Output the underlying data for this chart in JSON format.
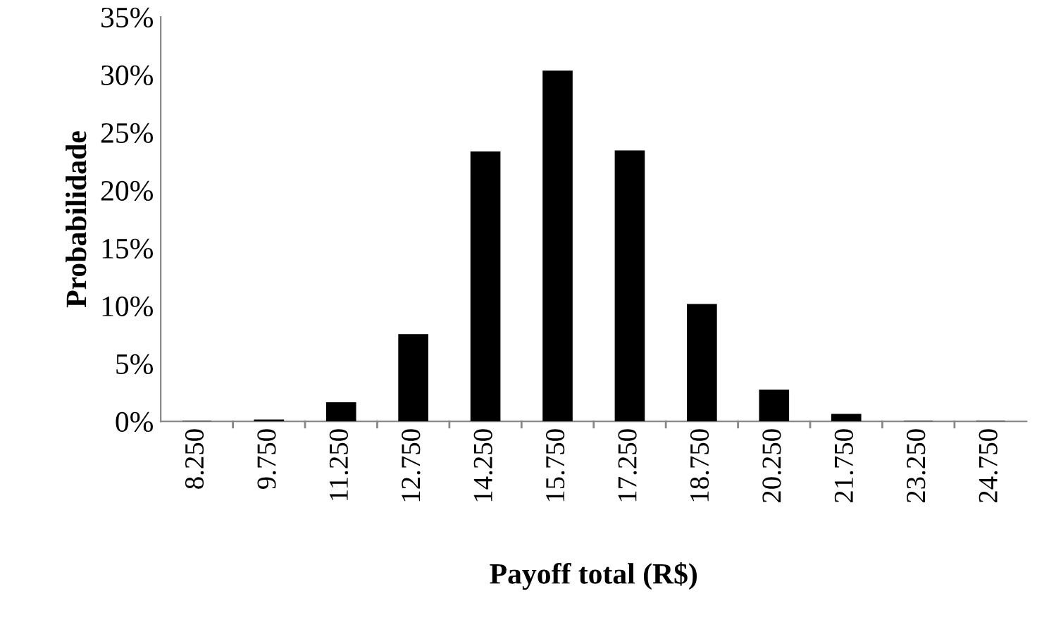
{
  "chart_data": {
    "type": "bar",
    "xlabel": "Payoff total (R$)",
    "ylabel": "Probabilidade",
    "categories": [
      "8.250",
      "9.750",
      "11.250",
      "12.750",
      "14.250",
      "15.750",
      "17.250",
      "18.750",
      "20.250",
      "21.750",
      "23.250",
      "24.750"
    ],
    "values": [
      0,
      0.1,
      1.6,
      7.5,
      23.3,
      30.3,
      23.4,
      10.1,
      2.7,
      0.6,
      0,
      0
    ],
    "color": "#000000",
    "ylim": [
      0,
      35
    ],
    "yticks": [
      {
        "value": 0,
        "label": "0%"
      },
      {
        "value": 5,
        "label": "5%"
      },
      {
        "value": 10,
        "label": "10%"
      },
      {
        "value": 15,
        "label": "15%"
      },
      {
        "value": 20,
        "label": "20%"
      },
      {
        "value": 25,
        "label": "25%"
      },
      {
        "value": 30,
        "label": "30%"
      },
      {
        "value": 35,
        "label": "35%"
      }
    ],
    "grid": false,
    "legend": false
  }
}
